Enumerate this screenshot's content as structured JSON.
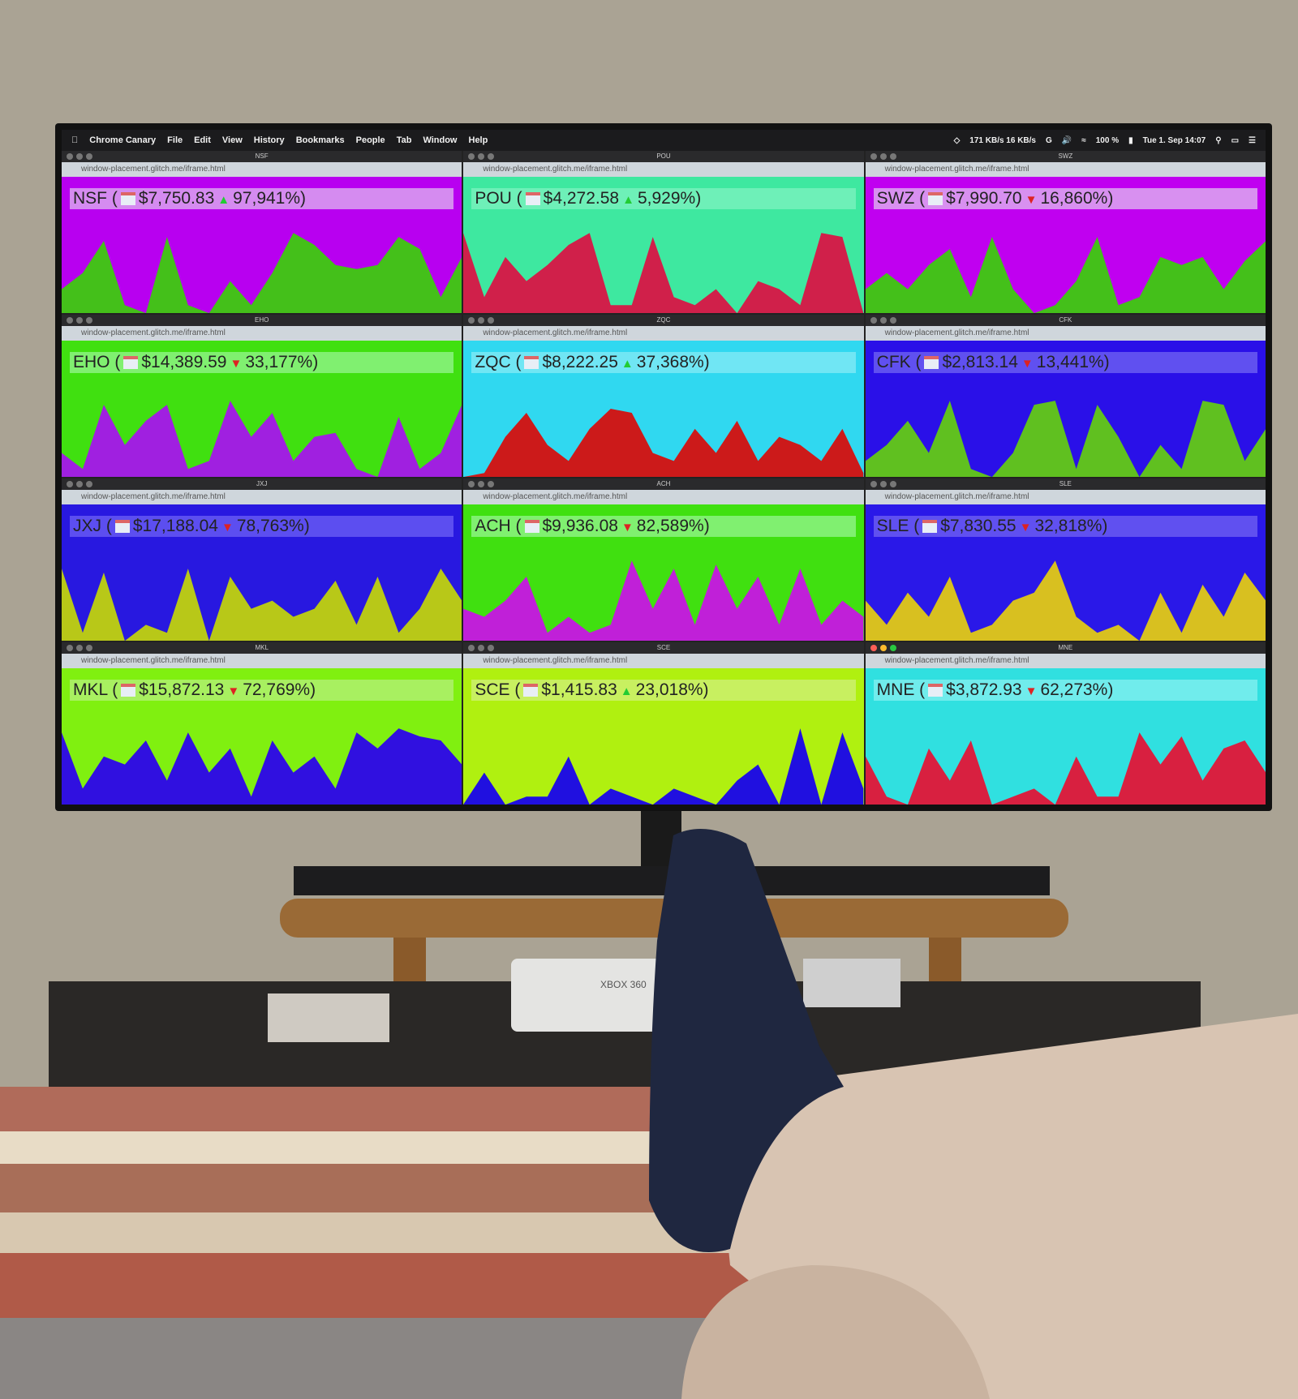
{
  "menubar": {
    "app": "Chrome Canary",
    "items": [
      "File",
      "Edit",
      "View",
      "History",
      "Bookmarks",
      "People",
      "Tab",
      "Window",
      "Help"
    ],
    "network": "171 KB/s 16 KB/s",
    "battery": "100 %",
    "datetime": "Tue 1. Sep 14:07"
  },
  "url": "window-placement.glitch.me/iframe.html",
  "panels": [
    {
      "ticker": "NSF",
      "price": "$7,750.83",
      "direction": "up",
      "change": "97,941%)",
      "bg": "#b800f0",
      "strip": "#d58bf0",
      "fill": "#44c01a",
      "values": [
        0.3,
        0.5,
        0.9,
        0.1,
        0,
        0.95,
        0.1,
        0,
        0.4,
        0.1,
        0.5,
        1,
        0.85,
        0.6,
        0.55,
        0.6,
        0.95,
        0.8,
        0.2,
        0.7
      ]
    },
    {
      "ticker": "POU",
      "price": "$4,272.58",
      "direction": "up",
      "change": "5,929%)",
      "bg": "#3ee8a0",
      "strip": "#6ef0b8",
      "fill": "#d0204a",
      "values": [
        1,
        0.2,
        0.7,
        0.4,
        0.6,
        0.85,
        1,
        0.1,
        0.1,
        0.95,
        0.2,
        0.1,
        0.3,
        0,
        0.4,
        0.3,
        0.1,
        1,
        0.95,
        0
      ]
    },
    {
      "ticker": "SWZ",
      "price": "$7,990.70",
      "direction": "down",
      "change": "16,860%)",
      "bg": "#c000f0",
      "strip": "#d890f0",
      "fill": "#44c01a",
      "values": [
        0.3,
        0.5,
        0.3,
        0.6,
        0.8,
        0.2,
        0.95,
        0.3,
        0,
        0.1,
        0.4,
        0.95,
        0.1,
        0.2,
        0.7,
        0.6,
        0.7,
        0.3,
        0.65,
        0.9
      ]
    },
    {
      "ticker": "EHO",
      "price": "$14,389.59",
      "direction": "down",
      "change": "33,177%)",
      "bg": "#40e010",
      "strip": "#80f070",
      "fill": "#a020e0",
      "values": [
        0.3,
        0.1,
        0.9,
        0.4,
        0.7,
        0.9,
        0.1,
        0.2,
        0.95,
        0.5,
        0.8,
        0.2,
        0.5,
        0.55,
        0.1,
        0,
        0.75,
        0.1,
        0.3,
        0.9
      ]
    },
    {
      "ticker": "ZQC",
      "price": "$8,222.25",
      "direction": "up",
      "change": "37,368%)",
      "bg": "#30d8f0",
      "strip": "#70e6f4",
      "fill": "#cc1a1a",
      "values": [
        0,
        0.05,
        0.5,
        0.8,
        0.4,
        0.2,
        0.6,
        0.85,
        0.8,
        0.3,
        0.2,
        0.6,
        0.3,
        0.7,
        0.2,
        0.5,
        0.4,
        0.2,
        0.6,
        0.05
      ]
    },
    {
      "ticker": "CFK",
      "price": "$2,813.14",
      "direction": "down",
      "change": "13,441%)",
      "bg": "#2a10e8",
      "strip": "#6050f0",
      "fill": "#60c020",
      "values": [
        0.2,
        0.4,
        0.7,
        0.3,
        0.95,
        0.1,
        0,
        0.3,
        0.9,
        0.95,
        0.1,
        0.9,
        0.5,
        0,
        0.4,
        0.1,
        0.95,
        0.9,
        0.2,
        0.6
      ]
    },
    {
      "ticker": "JXJ",
      "price": "$17,188.04",
      "direction": "down",
      "change": "78,763%)",
      "bg": "#2818e0",
      "strip": "#5c4ef0",
      "fill": "#b8c818",
      "values": [
        0.9,
        0.1,
        0.85,
        0,
        0.2,
        0.1,
        0.9,
        0,
        0.8,
        0.4,
        0.5,
        0.3,
        0.4,
        0.75,
        0.2,
        0.8,
        0.1,
        0.4,
        0.9,
        0.5
      ]
    },
    {
      "ticker": "ACH",
      "price": "$9,936.08",
      "direction": "down",
      "change": "82,589%)",
      "bg": "#40e010",
      "strip": "#80f070",
      "fill": "#c020d8",
      "values": [
        0.4,
        0.3,
        0.5,
        0.8,
        0.1,
        0.3,
        0.1,
        0.2,
        1,
        0.4,
        0.9,
        0.2,
        0.95,
        0.4,
        0.8,
        0.2,
        0.9,
        0.2,
        0.5,
        0.3
      ]
    },
    {
      "ticker": "SLE",
      "price": "$7,830.55",
      "direction": "down",
      "change": "32,818%)",
      "bg": "#2a18e8",
      "strip": "#6050f0",
      "fill": "#d8c020",
      "values": [
        0.5,
        0.2,
        0.6,
        0.3,
        0.8,
        0.1,
        0.2,
        0.5,
        0.6,
        1,
        0.3,
        0.1,
        0.2,
        0,
        0.6,
        0.1,
        0.7,
        0.3,
        0.85,
        0.5
      ]
    },
    {
      "ticker": "MKL",
      "price": "$15,872.13",
      "direction": "down",
      "change": "72,769%)",
      "bg": "#80f010",
      "strip": "#a8f060",
      "fill": "#3010e0",
      "values": [
        0.9,
        0.2,
        0.6,
        0.5,
        0.8,
        0.3,
        0.9,
        0.4,
        0.7,
        0.1,
        0.8,
        0.4,
        0.6,
        0.2,
        0.9,
        0.7,
        0.95,
        0.85,
        0.8,
        0.5
      ]
    },
    {
      "ticker": "SCE",
      "price": "$1,415.83",
      "direction": "up",
      "change": "23,018%)",
      "bg": "#b0f010",
      "strip": "#c8f060",
      "fill": "#2010e0",
      "values": [
        0,
        0.4,
        0,
        0.1,
        0.1,
        0.6,
        0,
        0.2,
        0.1,
        0,
        0.2,
        0.1,
        0,
        0.3,
        0.5,
        0,
        0.95,
        0,
        0.9,
        0.2
      ]
    },
    {
      "ticker": "MNE",
      "price": "$3,872.93",
      "direction": "down",
      "change": "62,273%)",
      "bg": "#30e0e0",
      "strip": "#70ecec",
      "fill": "#d82040",
      "values": [
        0.6,
        0.1,
        0,
        0.7,
        0.3,
        0.8,
        0,
        0.1,
        0.2,
        0,
        0.6,
        0.1,
        0.1,
        0.9,
        0.5,
        0.85,
        0.3,
        0.7,
        0.8,
        0.4
      ]
    }
  ],
  "colors": {
    "up": "#22cc33",
    "down": "#dd2222",
    "wall": "#a9a293"
  },
  "console_label": "XBOX 360"
}
